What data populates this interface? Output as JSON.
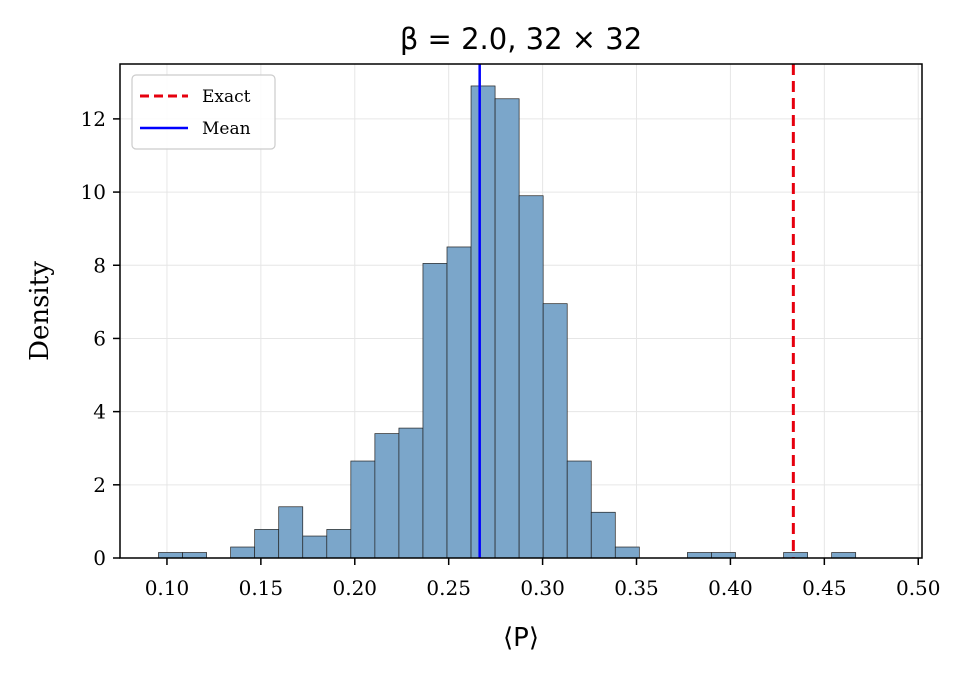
{
  "chart_data": {
    "type": "histogram",
    "title": "β = 2.0,  32 × 32",
    "xlabel": "⟨P⟩",
    "ylabel": "Density",
    "xlim": [
      0.075,
      0.502
    ],
    "ylim": [
      0,
      13.5
    ],
    "x_ticks": [
      0.1,
      0.15,
      0.2,
      0.25,
      0.3,
      0.35,
      0.4,
      0.45,
      0.5
    ],
    "x_tick_labels": [
      "0.10",
      "0.15",
      "0.20",
      "0.25",
      "0.30",
      "0.35",
      "0.40",
      "0.45",
      "0.50"
    ],
    "y_ticks": [
      0,
      2,
      4,
      6,
      8,
      10,
      12
    ],
    "y_tick_labels": [
      "0",
      "2",
      "4",
      "6",
      "8",
      "10",
      "12"
    ],
    "grid": true,
    "bin_start": 0.0955,
    "bin_width": 0.0128,
    "bar_color": "#7ba6ca",
    "bar_edge_color": "#222222",
    "densities": [
      0.15,
      0.15,
      0,
      0.3,
      0.78,
      1.4,
      0.6,
      0.78,
      2.65,
      3.4,
      3.55,
      8.05,
      8.5,
      12.9,
      12.55,
      9.9,
      6.95,
      2.65,
      1.25,
      0.3,
      0,
      0,
      0.15,
      0.15,
      0,
      0,
      0.15,
      0,
      0.15
    ],
    "lines": [
      {
        "name": "Exact",
        "x": 0.4335,
        "color": "#e6000e",
        "style": "dashed"
      },
      {
        "name": "Mean",
        "x": 0.2665,
        "color": "#0000ff",
        "style": "solid"
      }
    ],
    "legend": {
      "position": "top-left",
      "entries": [
        "Exact",
        "Mean"
      ]
    }
  }
}
